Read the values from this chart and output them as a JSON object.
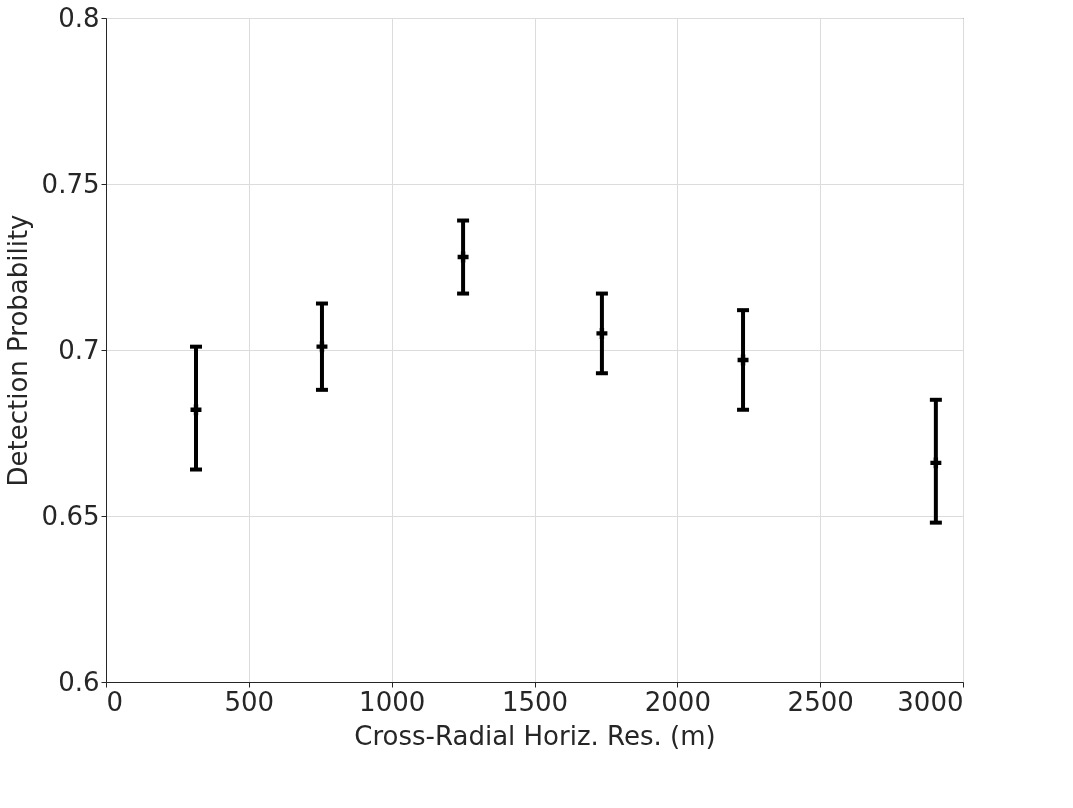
{
  "chart_data": {
    "type": "scatter",
    "xlabel": "Cross-Radial Horiz. Res. (m)",
    "ylabel": "Detection Probability",
    "x": [
      315,
      756,
      1250,
      1736,
      2230,
      2905
    ],
    "values": [
      0.682,
      0.701,
      0.728,
      0.705,
      0.697,
      0.666
    ],
    "errors": [
      [
        0.664,
        0.701
      ],
      [
        0.688,
        0.714
      ],
      [
        0.717,
        0.739
      ],
      [
        0.693,
        0.717
      ],
      [
        0.682,
        0.712
      ],
      [
        0.648,
        0.685
      ]
    ],
    "color": "#000000",
    "marker": "cross",
    "xlim": [
      0,
      3000
    ],
    "xticks": [
      0,
      500,
      1000,
      1500,
      2000,
      2500,
      3000
    ],
    "ylim": [
      0.6,
      0.8
    ],
    "yticks": [
      0.6,
      0.65,
      0.7,
      0.75,
      0.8
    ],
    "grid": true
  }
}
